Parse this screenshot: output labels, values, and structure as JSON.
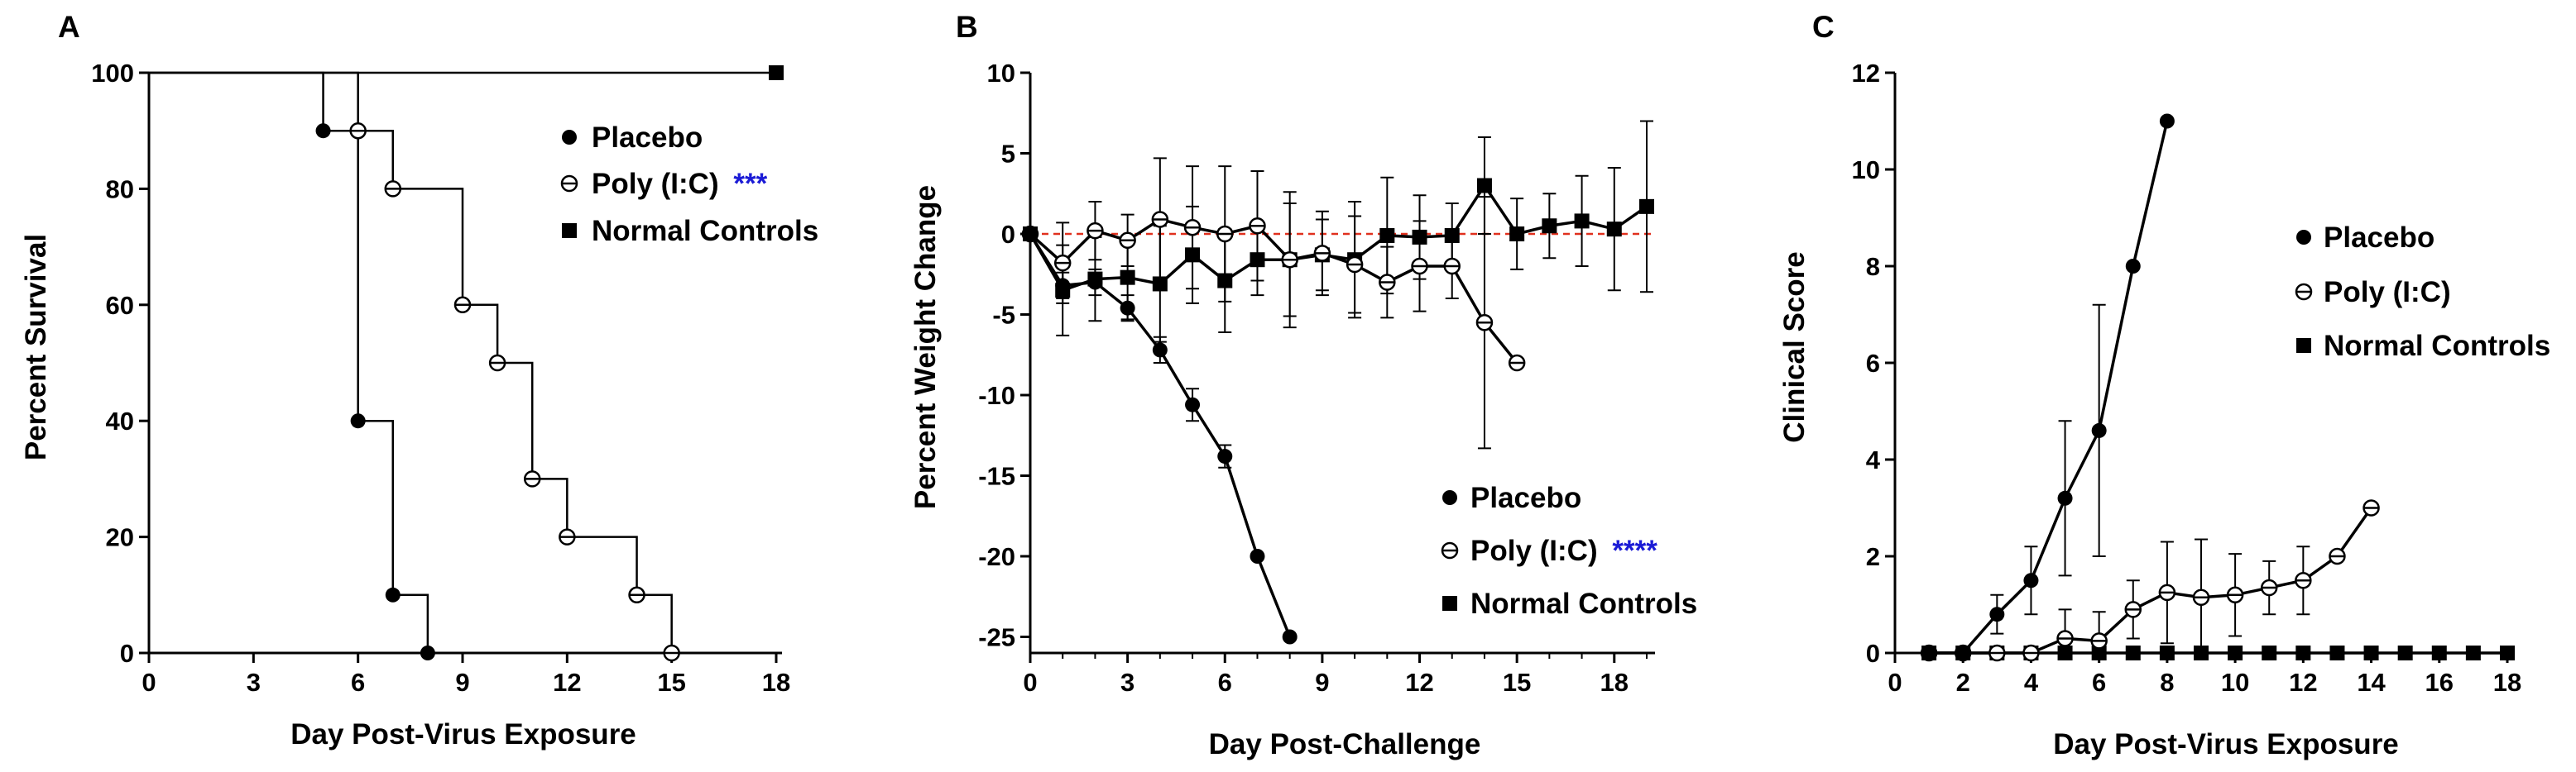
{
  "chart_data": [
    {
      "panel": "A",
      "type": "step",
      "xlabel": "Day Post-Virus Exposure",
      "ylabel": "Percent Survival",
      "xlim": [
        0,
        18
      ],
      "ylim": [
        0,
        100
      ],
      "xticks": [
        "0",
        "3",
        "6",
        "9",
        "12",
        "15",
        "18"
      ],
      "yticks": [
        "0",
        "20",
        "40",
        "60",
        "80",
        "100"
      ],
      "series": [
        {
          "name": "Placebo",
          "marker": "filled-circle",
          "steps": [
            [
              0,
              100
            ],
            [
              5,
              90
            ],
            [
              6,
              40
            ],
            [
              7,
              10
            ],
            [
              8,
              0
            ]
          ],
          "points": [
            [
              5,
              90
            ],
            [
              6,
              40
            ],
            [
              7,
              10
            ],
            [
              8,
              0
            ]
          ]
        },
        {
          "name": "Poly (I:C)",
          "marker": "open-circle",
          "significance": "***",
          "steps": [
            [
              0,
              100
            ],
            [
              6,
              90
            ],
            [
              7,
              80
            ],
            [
              9,
              60
            ],
            [
              10,
              50
            ],
            [
              11,
              30
            ],
            [
              12,
              20
            ],
            [
              14,
              10
            ],
            [
              15,
              0
            ]
          ],
          "points": [
            [
              6,
              90
            ],
            [
              7,
              80
            ],
            [
              9,
              60
            ],
            [
              10,
              50
            ],
            [
              11,
              30
            ],
            [
              12,
              20
            ],
            [
              14,
              10
            ],
            [
              15,
              0
            ]
          ]
        },
        {
          "name": "Normal Controls",
          "marker": "filled-square",
          "steps": [
            [
              0,
              100
            ],
            [
              18,
              100
            ]
          ],
          "points": [
            [
              18,
              100
            ]
          ]
        }
      ]
    },
    {
      "panel": "B",
      "type": "line",
      "xlabel": "Day Post-Challenge",
      "ylabel": "Percent Weight Change",
      "xlim": [
        0,
        19
      ],
      "ylim": [
        -26,
        10
      ],
      "xticks": [
        "0",
        "3",
        "6",
        "9",
        "12",
        "15",
        "18"
      ],
      "yticks": [
        "-25",
        "-20",
        "-15",
        "-10",
        "-5",
        "0",
        "5",
        "10"
      ],
      "reference_line": {
        "y": 0,
        "color": "#e0301e",
        "style": "dashed"
      },
      "series": [
        {
          "name": "Placebo",
          "marker": "filled-circle",
          "x": [
            0,
            1,
            2,
            3,
            4,
            5,
            6,
            7,
            8
          ],
          "y": [
            0,
            -3.2,
            -3.0,
            -4.6,
            -7.2,
            -10.6,
            -13.8,
            -20,
            -25
          ],
          "err": [
            0,
            0.8,
            0.8,
            0.8,
            0.8,
            1.0,
            0.7,
            0,
            0
          ]
        },
        {
          "name": "Poly (I:C)",
          "marker": "open-circle",
          "significance": "****",
          "x": [
            0,
            1,
            2,
            3,
            4,
            5,
            6,
            7,
            8,
            9,
            10,
            11,
            12,
            13,
            14,
            15
          ],
          "y": [
            0,
            -1.8,
            0.2,
            -0.4,
            0.9,
            0.4,
            0.0,
            0.5,
            -1.6,
            -1.2,
            -1.9,
            -3.0,
            -2.0,
            -2.0,
            -5.5,
            -8.0
          ],
          "err": [
            0,
            2.5,
            1.8,
            1.6,
            3.8,
            3.8,
            4.2,
            3.4,
            3.5,
            2.6,
            3.0,
            2.2,
            2.8,
            2.0,
            7.8,
            0
          ]
        },
        {
          "name": "Normal Controls",
          "marker": "filled-square",
          "x": [
            0,
            1,
            2,
            3,
            4,
            5,
            6,
            7,
            8,
            9,
            10,
            11,
            12,
            13,
            14,
            15,
            16,
            17,
            18,
            19
          ],
          "y": [
            0,
            -3.5,
            -2.8,
            -2.7,
            -3.1,
            -1.3,
            -2.9,
            -1.6,
            -1.6,
            -1.3,
            -1.6,
            -0.1,
            -0.2,
            -0.1,
            3.0,
            0.0,
            0.5,
            0.8,
            0.3,
            1.7
          ],
          "err": [
            0,
            2.8,
            2.6,
            2.6,
            3.6,
            3.0,
            3.2,
            2.2,
            4.2,
            2.2,
            3.6,
            3.6,
            2.6,
            2.0,
            3.0,
            2.2,
            2.0,
            2.8,
            3.8,
            5.3
          ]
        }
      ]
    },
    {
      "panel": "C",
      "type": "line",
      "xlabel": "Day Post-Virus Exposure",
      "ylabel": "Clinical Score",
      "xlim": [
        0,
        18
      ],
      "ylim": [
        0,
        12
      ],
      "xticks": [
        "0",
        "2",
        "4",
        "6",
        "8",
        "10",
        "12",
        "14",
        "16",
        "18"
      ],
      "yticks": [
        "0",
        "2",
        "4",
        "6",
        "8",
        "10",
        "12"
      ],
      "series": [
        {
          "name": "Placebo",
          "marker": "filled-circle",
          "x": [
            1,
            2,
            3,
            4,
            5,
            6,
            7,
            8
          ],
          "y": [
            0,
            0,
            0.8,
            1.5,
            3.2,
            4.6,
            8,
            11
          ],
          "err": [
            0,
            0,
            0.4,
            0.7,
            1.6,
            2.6,
            0,
            0
          ]
        },
        {
          "name": "Poly (I:C)",
          "marker": "open-circle",
          "x": [
            1,
            2,
            3,
            4,
            5,
            6,
            7,
            8,
            9,
            10,
            11,
            12,
            13,
            14
          ],
          "y": [
            0,
            0,
            0,
            0,
            0.3,
            0.25,
            0.9,
            1.25,
            1.15,
            1.2,
            1.35,
            1.5,
            2,
            3
          ],
          "err": [
            0,
            0,
            0,
            0,
            0.6,
            0.6,
            0.6,
            1.05,
            1.2,
            0.85,
            0.55,
            0.7,
            0,
            0
          ]
        },
        {
          "name": "Normal Controls",
          "marker": "filled-square",
          "x": [
            1,
            2,
            3,
            4,
            5,
            6,
            7,
            8,
            9,
            10,
            11,
            12,
            13,
            14,
            15,
            16,
            17,
            18
          ],
          "y": [
            0,
            0,
            0,
            0,
            0,
            0,
            0,
            0,
            0,
            0,
            0,
            0,
            0,
            0,
            0,
            0,
            0,
            0
          ],
          "err": [
            0,
            0,
            0,
            0,
            0,
            0,
            0,
            0,
            0,
            0,
            0,
            0,
            0,
            0,
            0,
            0,
            0,
            0
          ]
        }
      ]
    }
  ],
  "styles": {
    "ink": "#000000",
    "significance_color": "#1b1bd6",
    "reference_color": "#e0301e"
  }
}
